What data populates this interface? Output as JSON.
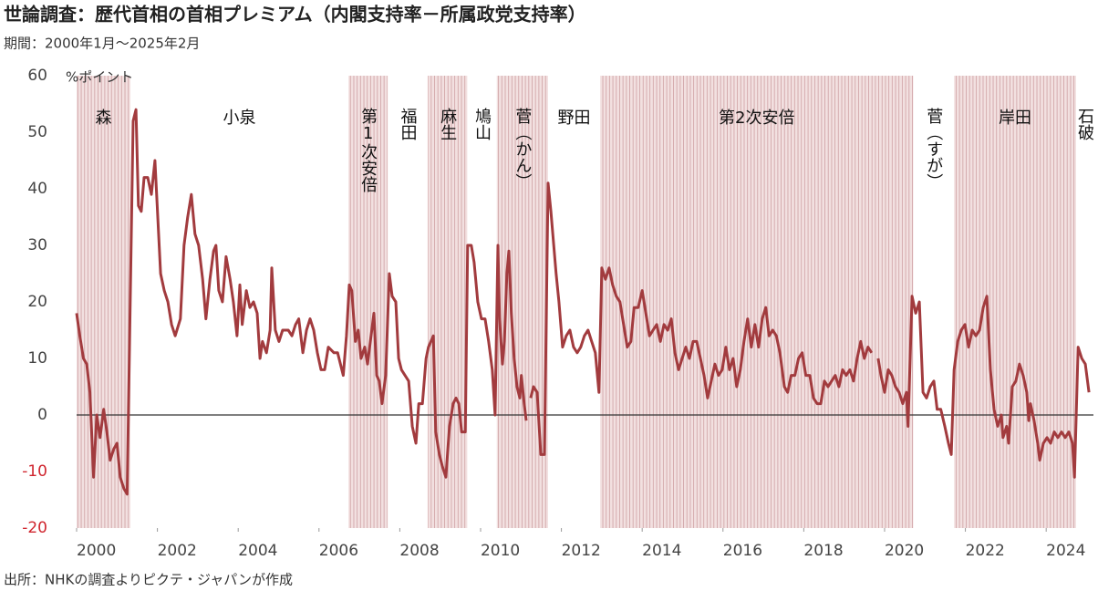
{
  "chart_data": {
    "type": "line",
    "title": "世論調査：歴代首相の首相プレミアム（内閣支持率－所属政党支持率）",
    "subtitle": "期間：2000年1月～2025年2月",
    "source": "出所：NHKの調査よりピクテ・ジャパンが作成",
    "y_unit": "%ポイント",
    "color": "#a23b3e",
    "negative_tick_color": "#d0262f",
    "zero_line": true,
    "xlim": [
      2000,
      2025.17
    ],
    "xticks": [
      2000,
      2002,
      2004,
      2006,
      2008,
      2010,
      2012,
      2014,
      2016,
      2018,
      2020,
      2022,
      2024
    ],
    "ylim": [
      -20,
      60
    ],
    "yticks": [
      -20,
      -10,
      0,
      10,
      20,
      30,
      40,
      50,
      60
    ],
    "periods": [
      {
        "name": "森",
        "start": 2000.0,
        "end": 2001.33,
        "shaded": true
      },
      {
        "name": "小泉",
        "start": 2001.33,
        "end": 2006.73,
        "shaded": false
      },
      {
        "name": "第1次安倍",
        "start": 2006.73,
        "end": 2007.7,
        "shaded": true
      },
      {
        "name": "福田",
        "start": 2007.7,
        "end": 2008.69,
        "shaded": false
      },
      {
        "name": "麻生",
        "start": 2008.69,
        "end": 2009.67,
        "shaded": true
      },
      {
        "name": "鳩山",
        "start": 2009.67,
        "end": 2010.4,
        "shaded": false
      },
      {
        "name": "菅（かん）",
        "start": 2010.4,
        "end": 2011.67,
        "shaded": true
      },
      {
        "name": "野田",
        "start": 2011.67,
        "end": 2012.96,
        "shaded": false
      },
      {
        "name": "第2次安倍",
        "start": 2012.96,
        "end": 2020.71,
        "shaded": true
      },
      {
        "name": "菅（すが）",
        "start": 2020.71,
        "end": 2021.72,
        "shaded": false
      },
      {
        "name": "岸田",
        "start": 2021.72,
        "end": 2024.74,
        "shaded": true
      },
      {
        "name": "石破",
        "start": 2024.74,
        "end": 2025.17,
        "shaded": false
      }
    ],
    "x": [
      2000.0,
      2000.08,
      2000.17,
      2000.25,
      2000.33,
      2000.42,
      2000.5,
      2000.58,
      2000.67,
      2000.75,
      2000.83,
      2000.92,
      2001.0,
      2001.08,
      2001.17,
      2001.25,
      2001.4,
      2001.47,
      2001.53,
      2001.6,
      2001.67,
      2001.76,
      2001.85,
      2001.94,
      2002.08,
      2002.17,
      2002.26,
      2002.35,
      2002.44,
      2002.57,
      2002.66,
      2002.75,
      2002.84,
      2002.93,
      2003.02,
      2003.12,
      2003.2,
      2003.3,
      2003.39,
      2003.45,
      2003.52,
      2003.61,
      2003.7,
      2003.8,
      2003.88,
      2003.97,
      2004.04,
      2004.1,
      2004.2,
      2004.29,
      2004.38,
      2004.47,
      2004.54,
      2004.6,
      2004.7,
      2004.79,
      2004.83,
      2004.92,
      2005.01,
      2005.1,
      2005.24,
      2005.33,
      2005.42,
      2005.5,
      2005.6,
      2005.69,
      2005.78,
      2005.87,
      2005.96,
      2006.05,
      2006.14,
      2006.23,
      2006.37,
      2006.46,
      2006.6,
      2006.68,
      2006.75,
      2006.81,
      2006.9,
      2006.97,
      2007.04,
      2007.13,
      2007.2,
      2007.27,
      2007.36,
      2007.43,
      2007.49,
      2007.56,
      2007.65,
      2007.74,
      2007.81,
      2007.9,
      2007.97,
      2008.04,
      2008.13,
      2008.22,
      2008.31,
      2008.4,
      2008.47,
      2008.56,
      2008.65,
      2008.71,
      2008.83,
      2008.89,
      2008.98,
      2009.05,
      2009.14,
      2009.23,
      2009.32,
      2009.39,
      2009.46,
      2009.53,
      2009.62,
      2009.68,
      2009.77,
      2009.84,
      2009.93,
      2010.02,
      2010.11,
      2010.2,
      2010.29,
      2010.36,
      2010.43,
      2010.47,
      2010.54,
      2010.59,
      2010.65,
      2010.7,
      2010.76,
      2010.83,
      2010.9,
      2010.97,
      2011.01,
      2011.08,
      2011.13,
      null,
      2011.24,
      2011.31,
      2011.4,
      2011.49,
      2011.58,
      2011.67,
      2011.74,
      2011.81,
      2011.87,
      2011.94,
      2012.03,
      2012.12,
      2012.21,
      2012.3,
      2012.39,
      2012.48,
      2012.57,
      2012.66,
      2012.75,
      2012.84,
      2012.93,
      2013.0,
      2013.09,
      2013.18,
      2013.27,
      2013.36,
      2013.45,
      2013.54,
      2013.63,
      2013.72,
      2013.8,
      2013.9,
      2014.0,
      2014.09,
      2014.18,
      2014.27,
      2014.36,
      2014.45,
      2014.54,
      2014.63,
      2014.72,
      2014.81,
      2014.9,
      2014.99,
      2015.08,
      2015.17,
      2015.26,
      2015.35,
      2015.44,
      2015.53,
      2015.62,
      2015.71,
      2015.8,
      2015.89,
      2015.98,
      2016.07,
      2016.16,
      2016.25,
      2016.34,
      2016.43,
      2016.52,
      2016.61,
      2016.7,
      2016.79,
      2016.88,
      2016.97,
      2017.06,
      2017.14,
      2017.23,
      2017.32,
      2017.41,
      2017.52,
      2017.6,
      2017.69,
      2017.78,
      2017.87,
      2017.96,
      2018.05,
      2018.15,
      2018.24,
      2018.33,
      2018.42,
      2018.51,
      2018.6,
      2018.69,
      2018.78,
      2018.87,
      2018.96,
      2019.05,
      2019.14,
      2019.23,
      2019.32,
      2019.41,
      2019.5,
      2019.59,
      2019.68,
      null,
      2019.84,
      2019.91,
      2020.0,
      2020.09,
      2020.18,
      2020.27,
      2020.36,
      2020.45,
      2020.54,
      2020.58,
      2020.68,
      2020.77,
      2020.86,
      2020.95,
      2021.04,
      2021.13,
      2021.22,
      2021.3,
      2021.39,
      2021.49,
      2021.58,
      2021.65,
      2021.72,
      2021.81,
      2021.9,
      2021.99,
      2022.08,
      2022.17,
      2022.26,
      2022.35,
      2022.44,
      2022.53,
      2022.62,
      2022.71,
      2022.8,
      2022.89,
      2022.93,
      2023.02,
      2023.07,
      2023.16,
      2023.25,
      2023.34,
      2023.43,
      2023.52,
      2023.57,
      2023.61,
      2023.7,
      2023.79,
      2023.84,
      2023.93,
      2024.02,
      2024.11,
      2024.2,
      2024.29,
      2024.38,
      2024.47,
      2024.56,
      2024.65,
      2024.7,
      2024.79,
      2024.88,
      2024.97,
      2025.06
    ],
    "values": [
      18,
      14,
      10,
      9,
      4,
      -11,
      0,
      -4,
      1,
      -3,
      -8,
      -6,
      -5,
      -11,
      -13,
      -14,
      52,
      54,
      37,
      36,
      42,
      42,
      39,
      45,
      25,
      22,
      20,
      16,
      14,
      17,
      30,
      35,
      39,
      32,
      30,
      24,
      17,
      24,
      29,
      30,
      22,
      20,
      28,
      24,
      20,
      14,
      23,
      16,
      22,
      19,
      20,
      18,
      10,
      13,
      11,
      15,
      26,
      15,
      13,
      15,
      15,
      14,
      16,
      17,
      11,
      15,
      17,
      15,
      11,
      8,
      8,
      12,
      11,
      11,
      7,
      14,
      23,
      22,
      13,
      15,
      10,
      12,
      9,
      13,
      18,
      7,
      6,
      2,
      7,
      25,
      21,
      20,
      10,
      8,
      7,
      6,
      -2,
      -5,
      2,
      2,
      10,
      12,
      14,
      -3,
      -7,
      -9,
      -11,
      -2,
      2,
      3,
      2,
      -3,
      -3,
      30,
      30,
      27,
      20,
      17,
      17,
      13,
      8,
      0,
      30,
      17,
      9,
      13,
      25,
      29,
      18,
      10,
      5,
      3,
      7,
      2,
      -1,
      null,
      3,
      5,
      4,
      -7,
      -7,
      41,
      36,
      30,
      25,
      20,
      12,
      14,
      15,
      12,
      11,
      12,
      14,
      15,
      13,
      11,
      4,
      26,
      24,
      26,
      23,
      21,
      20,
      16,
      12,
      13,
      19,
      19,
      22,
      18,
      14,
      15,
      16,
      13,
      16,
      15,
      17,
      11,
      8,
      10,
      12,
      10,
      13,
      13,
      10,
      7,
      3,
      6,
      9,
      7,
      8,
      12,
      8,
      10,
      5,
      8,
      13,
      17,
      12,
      16,
      12,
      17,
      19,
      14,
      15,
      14,
      11,
      5,
      4,
      7,
      7,
      10,
      11,
      7,
      7,
      3,
      2,
      2,
      6,
      5,
      6,
      7,
      5,
      8,
      7,
      8,
      6,
      10,
      13,
      10,
      12,
      11,
      null,
      10,
      7,
      4,
      8,
      7,
      5,
      4,
      2,
      4,
      -2,
      21,
      18,
      20,
      4,
      3,
      5,
      6,
      1,
      1,
      -2,
      -5,
      -7,
      8,
      13,
      15,
      16,
      12,
      15,
      14,
      15,
      19,
      21,
      8,
      1,
      -2,
      0,
      -4,
      -2,
      -5,
      5,
      6,
      9,
      7,
      4,
      -1,
      2,
      -1,
      -5,
      -8,
      -5,
      -4,
      -5,
      -3,
      -4,
      -3,
      -4,
      -3,
      -5,
      -11,
      12,
      10,
      9,
      4
    ]
  }
}
